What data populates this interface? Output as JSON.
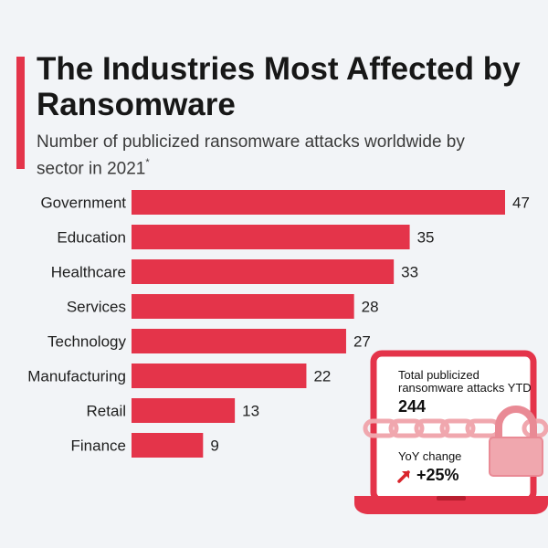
{
  "header": {
    "title": "The Industries Most Affected by Ransomware",
    "subtitle": "Number of publicized ransomware attacks worldwide by sector in 2021",
    "footnote_mark": "*"
  },
  "chart_data": {
    "type": "bar",
    "orientation": "horizontal",
    "title": "The Industries Most Affected by Ransomware",
    "subtitle": "Number of publicized ransomware attacks worldwide by sector in 2021*",
    "categories": [
      "Government",
      "Education",
      "Healthcare",
      "Services",
      "Technology",
      "Manufacturing",
      "Retail",
      "Finance"
    ],
    "values": [
      47,
      35,
      33,
      28,
      27,
      22,
      13,
      9
    ],
    "xlabel": "",
    "ylabel": "",
    "xlim": [
      0,
      47
    ],
    "grid": false,
    "legend": "none",
    "bar_color": "#e4344a"
  },
  "stats": {
    "total_label": "Total publicized ransomware attacks YTD",
    "total_value": "244",
    "yoy_label": "YoY change",
    "yoy_value": "+25%"
  },
  "colors": {
    "accent": "#e4344a",
    "background": "#f2f4f7",
    "arrow": "#d9252c",
    "chain": "#f0a7ae"
  }
}
